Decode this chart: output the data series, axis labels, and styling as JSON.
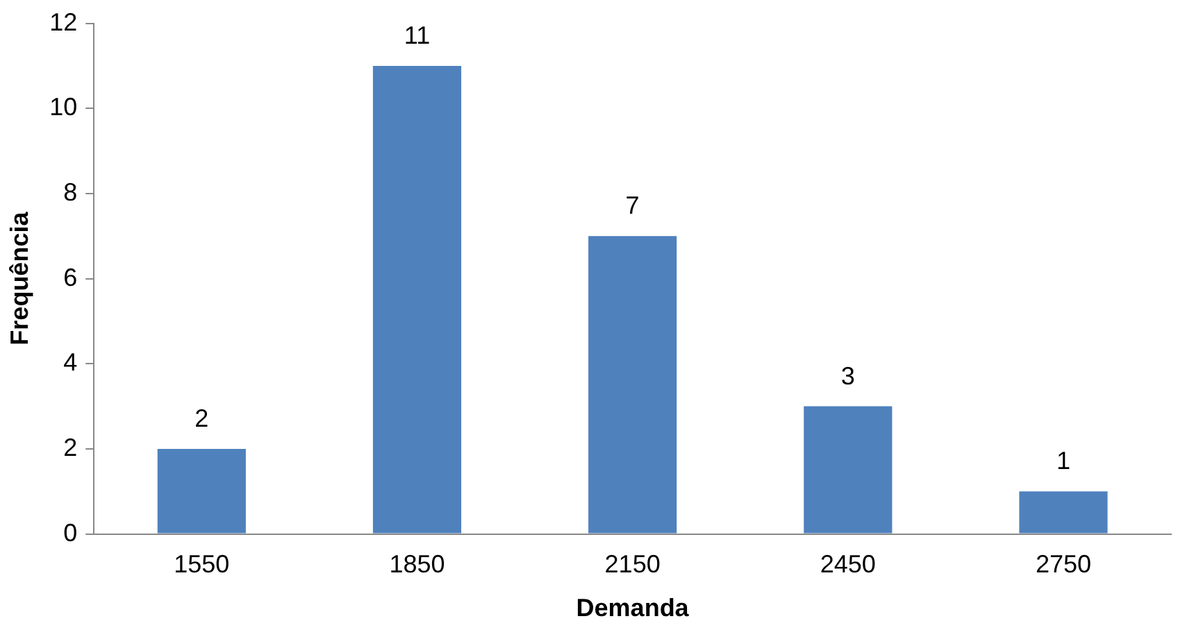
{
  "chart_data": {
    "type": "bar",
    "xlabel": "Demanda",
    "ylabel": "Frequência",
    "categories": [
      "1550",
      "1850",
      "2150",
      "2450",
      "2750"
    ],
    "values": [
      2,
      11,
      7,
      3,
      1
    ],
    "color": "#4f81bd",
    "ylim": [
      0,
      12
    ],
    "yticks": [
      0,
      2,
      4,
      6,
      8,
      10,
      12
    ],
    "grid": false,
    "legend": false,
    "data_labels": true
  }
}
